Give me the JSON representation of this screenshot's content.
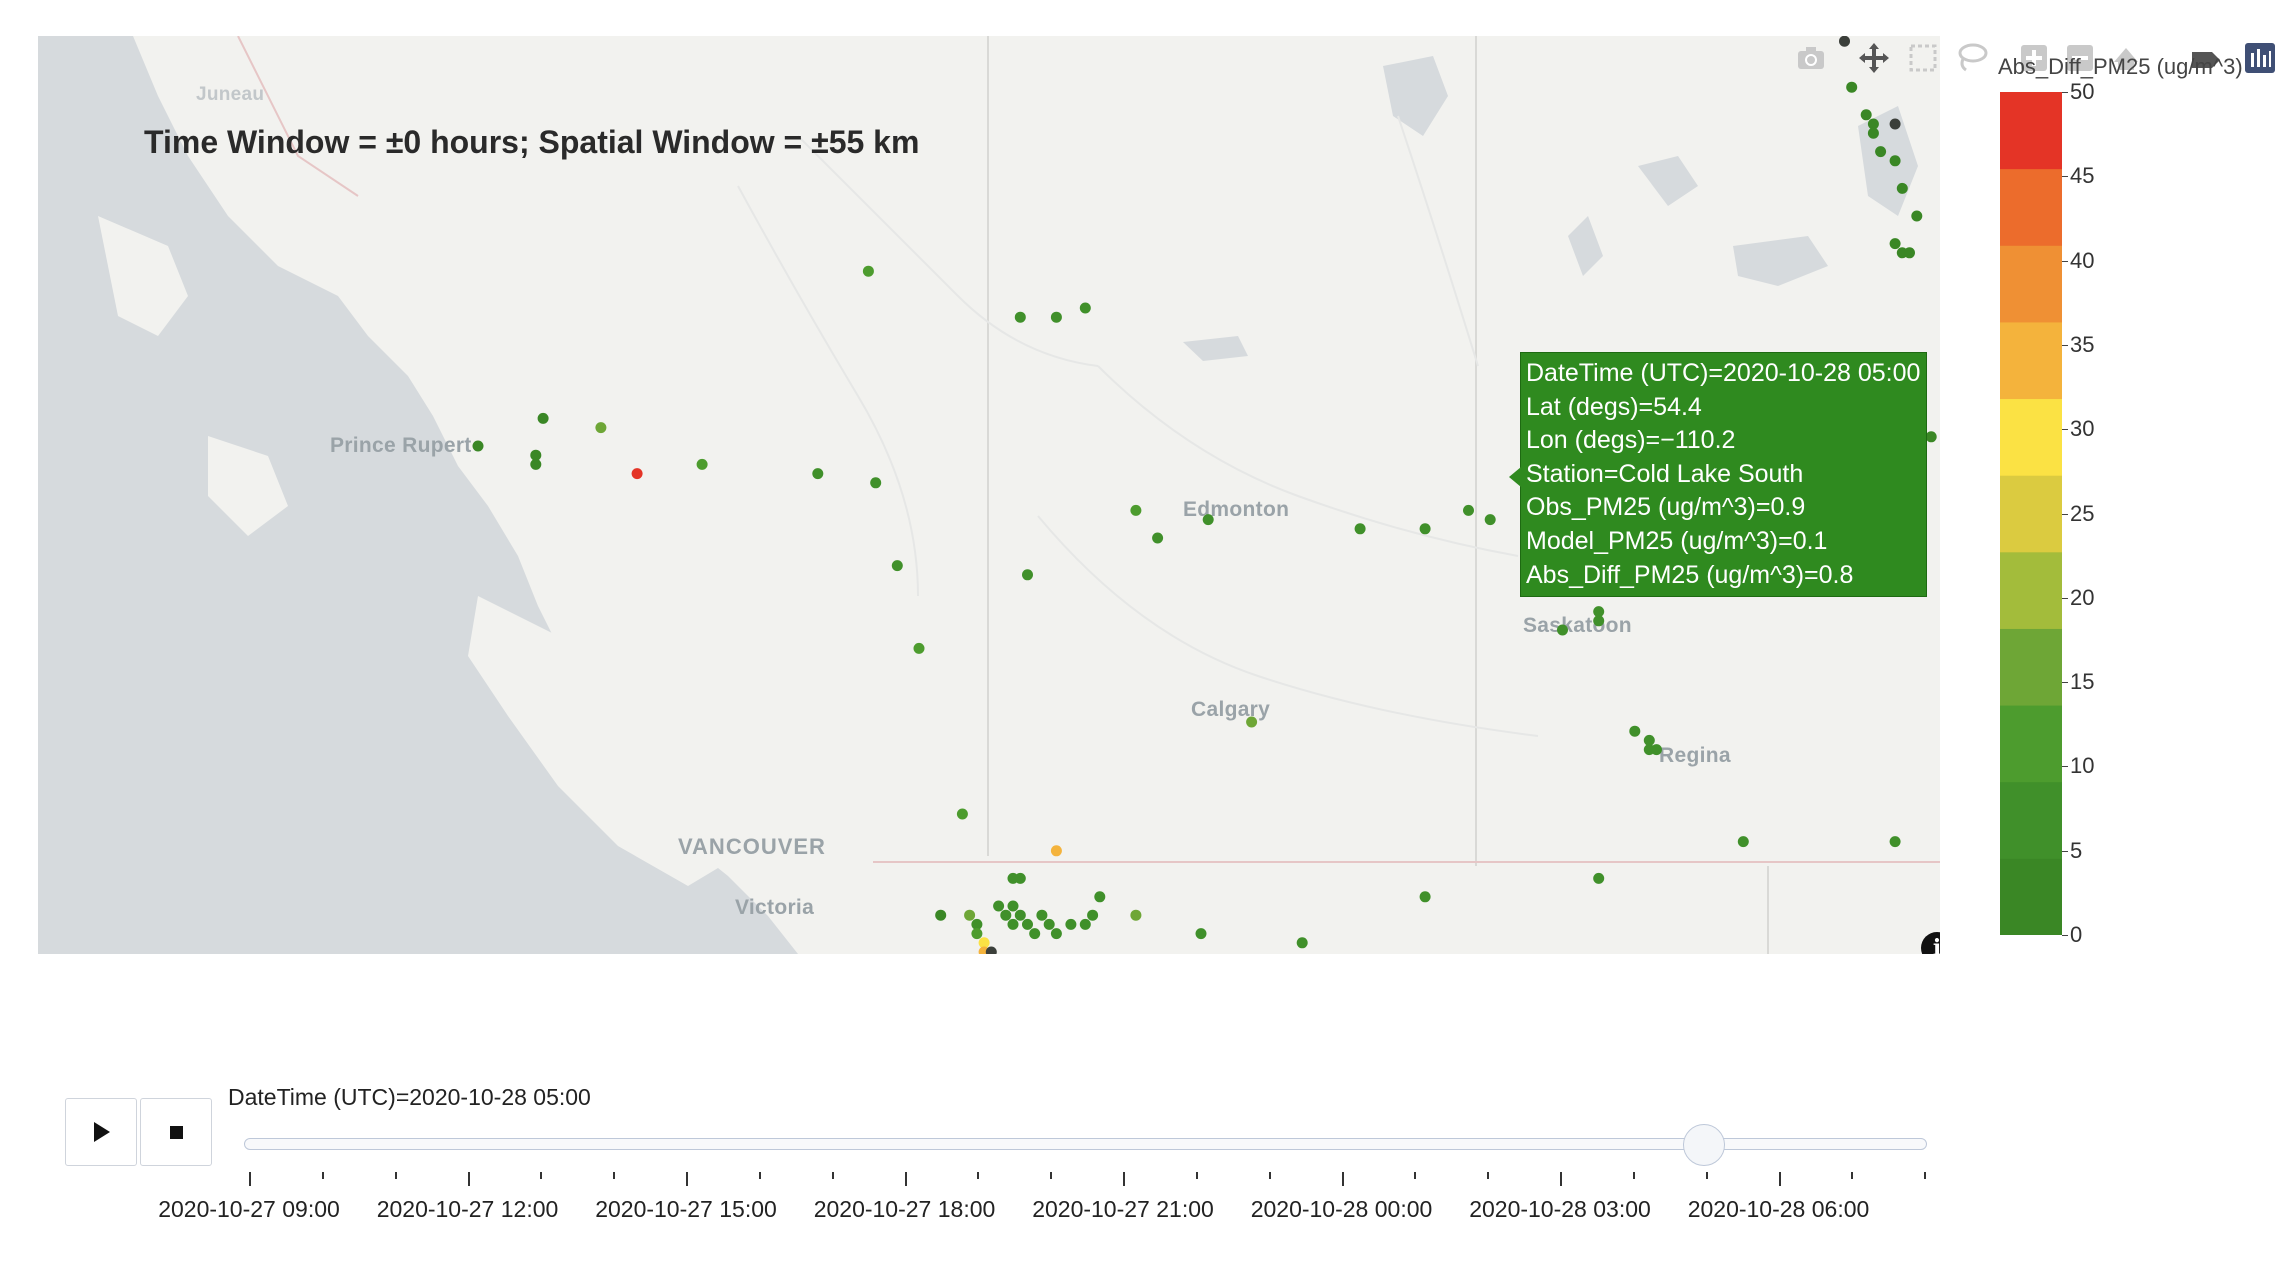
{
  "map": {
    "title": "Time Window = ±0 hours; Spatial Window = ±55 km",
    "cities": [
      "Prince Rupert",
      "Edmonton",
      "Saskatoon",
      "Calgary",
      "Regina",
      "VANCOUVER",
      "Victoria"
    ],
    "faint_label": "Juneau",
    "info_icon": "info-icon",
    "tooltip": {
      "lines": [
        "DateTime (UTC)=2020-10-28 05:00",
        "Lat (degs)=54.4",
        "Lon (degs)=−110.2",
        "Station=Cold Lake South",
        "Obs_PM25 (ug/m^3)=0.9",
        "Model_PM25 (ug/m^3)=0.1",
        "Abs_Diff_PM25 (ug/m^3)=0.8"
      ],
      "background": "#2f8a1f"
    },
    "stations_abs_diff_pm25": [
      {
        "lon": -130.3,
        "lat": 54.3,
        "value": 3
      },
      {
        "lon": -129.4,
        "lat": 54.6,
        "value": 3
      },
      {
        "lon": -129.5,
        "lat": 54.2,
        "value": 3
      },
      {
        "lon": -129.5,
        "lat": 54.1,
        "value": 3
      },
      {
        "lon": -128.6,
        "lat": 54.5,
        "value": 16
      },
      {
        "lon": -128.1,
        "lat": 54.0,
        "value": 48
      },
      {
        "lon": -127.2,
        "lat": 54.1,
        "value": 12
      },
      {
        "lon": -124.9,
        "lat": 56.2,
        "value": 12
      },
      {
        "lon": -125.6,
        "lat": 54.0,
        "value": 5
      },
      {
        "lon": -124.8,
        "lat": 53.9,
        "value": 5
      },
      {
        "lon": -124.5,
        "lat": 53.0,
        "value": 5
      },
      {
        "lon": -124.2,
        "lat": 52.1,
        "value": 10
      },
      {
        "lon": -122.8,
        "lat": 55.7,
        "value": 5
      },
      {
        "lon": -122.3,
        "lat": 55.7,
        "value": 5
      },
      {
        "lon": -121.9,
        "lat": 55.8,
        "value": 5
      },
      {
        "lon": -122.7,
        "lat": 52.9,
        "value": 5
      },
      {
        "lon": -121.2,
        "lat": 53.6,
        "value": 12
      },
      {
        "lon": -120.9,
        "lat": 53.3,
        "value": 5
      },
      {
        "lon": -120.2,
        "lat": 53.5,
        "value": 5
      },
      {
        "lon": -119.6,
        "lat": 51.3,
        "value": 15
      },
      {
        "lon": -123.6,
        "lat": 50.3,
        "value": 10
      },
      {
        "lon": -122.3,
        "lat": 49.9,
        "value": 32
      },
      {
        "lon": -122.8,
        "lat": 49.6,
        "value": 5
      },
      {
        "lon": -121.7,
        "lat": 49.4,
        "value": 5
      },
      {
        "lon": -121.2,
        "lat": 49.2,
        "value": 18
      },
      {
        "lon": -120.3,
        "lat": 49.0,
        "value": 5
      },
      {
        "lon": -118.9,
        "lat": 48.9,
        "value": 5
      },
      {
        "lon": -117.2,
        "lat": 49.4,
        "value": 5
      },
      {
        "lon": -118.1,
        "lat": 53.4,
        "value": 5
      },
      {
        "lon": -117.2,
        "lat": 53.4,
        "value": 5
      },
      {
        "lon": -116.6,
        "lat": 53.6,
        "value": 5
      },
      {
        "lon": -116.3,
        "lat": 53.5,
        "value": 5
      },
      {
        "lon": -115.6,
        "lat": 53.5,
        "value": 5
      },
      {
        "lon": -115.0,
        "lat": 53.7,
        "value": 5
      },
      {
        "lon": -114.8,
        "lat": 53.5,
        "value": 5
      },
      {
        "lon": -114.6,
        "lat": 53.6,
        "value": 5
      },
      {
        "lon": -114.4,
        "lat": 53.7,
        "value": 5
      },
      {
        "lon": -114.0,
        "lat": 53.8,
        "value": 5
      },
      {
        "lon": -113.9,
        "lat": 53.7,
        "value": 5
      },
      {
        "lon": -113.7,
        "lat": 53.8,
        "value": 5
      },
      {
        "lon": -113.5,
        "lat": 53.7,
        "value": 5
      },
      {
        "lon": -113.3,
        "lat": 53.8,
        "value": 5
      },
      {
        "lon": -113.1,
        "lat": 53.9,
        "value": 5
      },
      {
        "lon": -115.3,
        "lat": 52.3,
        "value": 5
      },
      {
        "lon": -114.8,
        "lat": 52.5,
        "value": 5
      },
      {
        "lon": -114.8,
        "lat": 52.4,
        "value": 5
      },
      {
        "lon": -114.3,
        "lat": 51.2,
        "value": 5
      },
      {
        "lon": -114.1,
        "lat": 51.1,
        "value": 5
      },
      {
        "lon": -114.1,
        "lat": 51.0,
        "value": 5
      },
      {
        "lon": -114.0,
        "lat": 51.0,
        "value": 5
      },
      {
        "lon": -112.8,
        "lat": 50.0,
        "value": 5
      },
      {
        "lon": -114.8,
        "lat": 49.6,
        "value": 5
      },
      {
        "lon": -111.1,
        "lat": 54.1,
        "value": 5
      },
      {
        "lon": -110.2,
        "lat": 54.4,
        "value": 0.8
      },
      {
        "lon": -110.7,
        "lat": 50.0,
        "value": 5
      },
      {
        "lon": -111.4,
        "lat": 58.7,
        "value": 2
      },
      {
        "lon": -111.3,
        "lat": 58.2,
        "value": 3
      },
      {
        "lon": -111.1,
        "lat": 57.9,
        "value": 3
      },
      {
        "lon": -111.0,
        "lat": 57.8,
        "value": 3
      },
      {
        "lon": -111.0,
        "lat": 57.7,
        "value": 3
      },
      {
        "lon": -110.9,
        "lat": 57.5,
        "value": 3
      },
      {
        "lon": -110.7,
        "lat": 57.4,
        "value": 3
      },
      {
        "lon": -110.6,
        "lat": 57.1,
        "value": 3
      },
      {
        "lon": -110.4,
        "lat": 56.8,
        "value": 3
      },
      {
        "lon": -110.7,
        "lat": 56.5,
        "value": 3
      },
      {
        "lon": -110.6,
        "lat": 56.4,
        "value": 3
      },
      {
        "lon": -110.5,
        "lat": 56.4,
        "value": 3
      },
      {
        "lon": -110.7,
        "lat": 57.8,
        "value": 2
      },
      {
        "lon": -110.9,
        "lat": 59.6,
        "value": 3
      },
      {
        "lon": -123.9,
        "lat": 49.2,
        "value": 3
      },
      {
        "lon": -123.5,
        "lat": 49.2,
        "value": 14
      },
      {
        "lon": -123.4,
        "lat": 49.1,
        "value": 5
      },
      {
        "lon": -123.4,
        "lat": 49.0,
        "value": 12
      },
      {
        "lon": -123.3,
        "lat": 48.9,
        "value": 28
      },
      {
        "lon": -123.3,
        "lat": 48.8,
        "value": 32
      },
      {
        "lon": -123.2,
        "lat": 48.8,
        "value": 1
      },
      {
        "lon": -123.1,
        "lat": 49.3,
        "value": 5
      },
      {
        "lon": -123.0,
        "lat": 49.2,
        "value": 5
      },
      {
        "lon": -122.9,
        "lat": 49.1,
        "value": 5
      },
      {
        "lon": -122.8,
        "lat": 49.2,
        "value": 5
      },
      {
        "lon": -122.7,
        "lat": 49.1,
        "value": 5
      },
      {
        "lon": -122.6,
        "lat": 49.0,
        "value": 5
      },
      {
        "lon": -122.5,
        "lat": 49.2,
        "value": 5
      },
      {
        "lon": -122.4,
        "lat": 49.1,
        "value": 5
      },
      {
        "lon": -122.3,
        "lat": 49.0,
        "value": 5
      },
      {
        "lon": -122.1,
        "lat": 49.1,
        "value": 5
      },
      {
        "lon": -121.9,
        "lat": 49.1,
        "value": 5
      },
      {
        "lon": -121.8,
        "lat": 49.2,
        "value": 5
      },
      {
        "lon": -123.1,
        "lat": 48.4,
        "value": 5
      },
      {
        "lon": -123.0,
        "lat": 48.4,
        "value": 5
      },
      {
        "lon": -122.9,
        "lat": 49.6,
        "value": 5
      },
      {
        "lon": -122.9,
        "lat": 49.3,
        "value": 5
      }
    ]
  },
  "modebar": {
    "icons": [
      "camera-icon",
      "pan-icon",
      "box-select-icon",
      "lasso-icon",
      "zoom-in-icon",
      "zoom-out-icon",
      "reset-icon",
      "toggle-hover-icon",
      "plotly-logo-icon"
    ]
  },
  "colorbar": {
    "title": "Abs_Diff_PM25 (ug/m^3)",
    "ticks": [
      "0",
      "5",
      "10",
      "15",
      "20",
      "25",
      "30",
      "35",
      "40",
      "45",
      "50"
    ],
    "range": [
      0,
      50
    ],
    "colors": [
      "#3a8725",
      "#40902a",
      "#4d9c2e",
      "#6ea636",
      "#a3bc3b",
      "#dbcb40",
      "#fbe244",
      "#f4b33c",
      "#ef9034",
      "#ec6c2c",
      "#e43426"
    ]
  },
  "slider": {
    "current_label": "DateTime (UTC)=2020-10-28 05:00",
    "tick_labels": [
      "2020-10-27 09:00",
      "2020-10-27 12:00",
      "2020-10-27 15:00",
      "2020-10-27 18:00",
      "2020-10-27 21:00",
      "2020-10-28 00:00",
      "2020-10-28 03:00",
      "2020-10-28 06:00"
    ],
    "current_value": "2020-10-28 05:00",
    "play_icon": "play-icon",
    "stop_icon": "stop-icon"
  }
}
